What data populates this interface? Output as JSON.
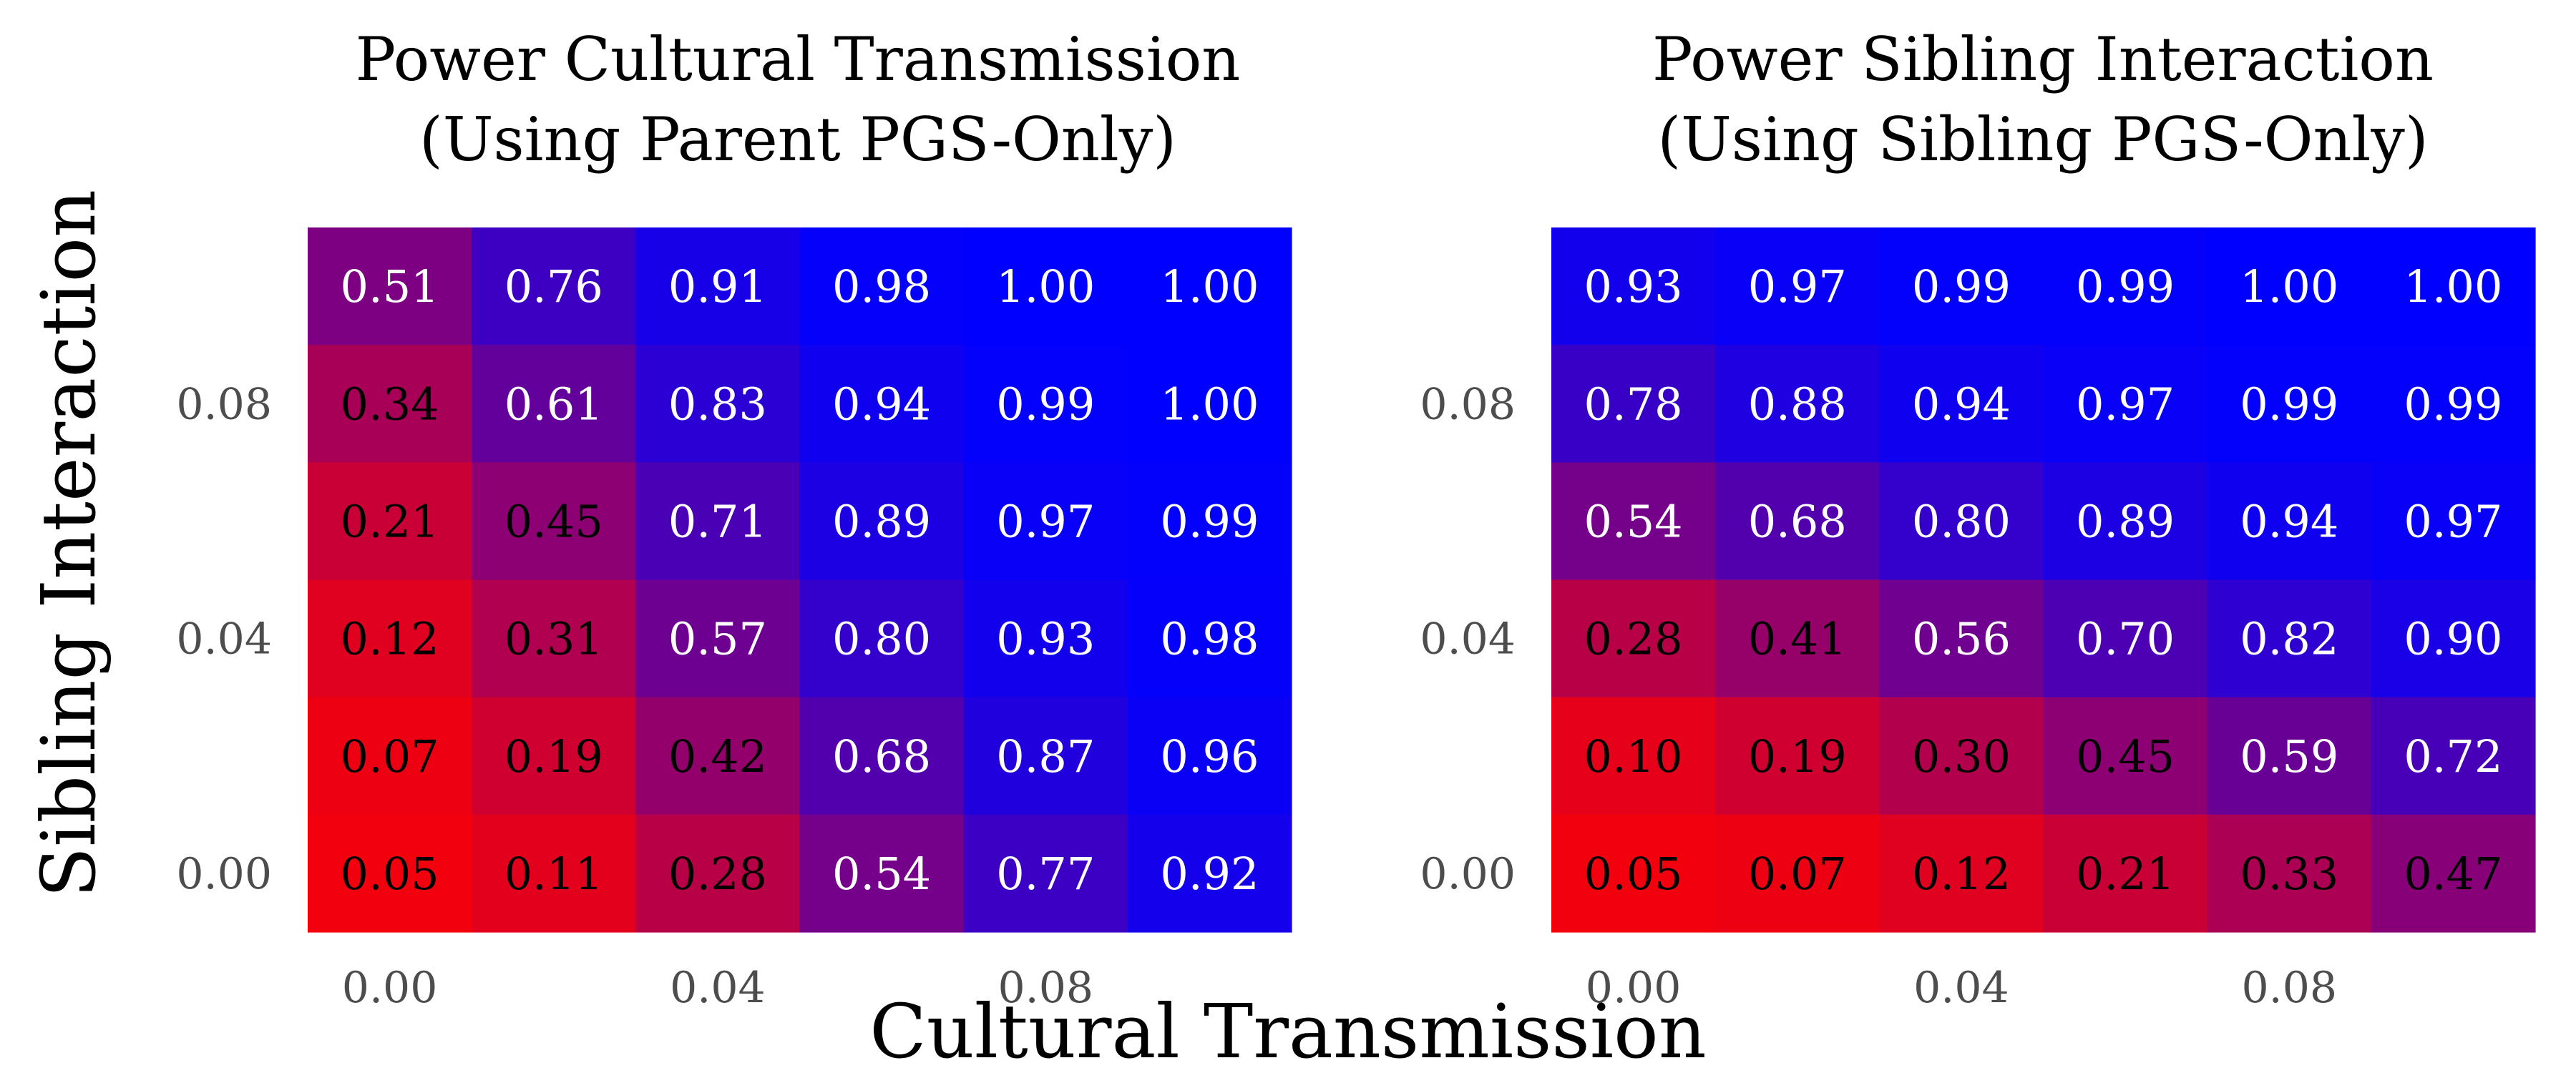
{
  "chart_data": [
    {
      "type": "heatmap",
      "title_lines": [
        "Power Cultural Transmission",
        "(Using Parent PGS-Only)"
      ],
      "x_values": [
        0.0,
        0.02,
        0.04,
        0.06,
        0.08,
        0.1
      ],
      "y_values": [
        0.1,
        0.08,
        0.06,
        0.04,
        0.02,
        0.0
      ],
      "x_tick_labels": [
        {
          "value": 0.0,
          "label": "0.00"
        },
        {
          "value": 0.04,
          "label": "0.04"
        },
        {
          "value": 0.08,
          "label": "0.08"
        }
      ],
      "y_tick_labels": [
        {
          "value": 0.08,
          "label": "0.08"
        },
        {
          "value": 0.04,
          "label": "0.04"
        },
        {
          "value": 0.0,
          "label": "0.00"
        }
      ],
      "values": [
        [
          0.51,
          0.76,
          0.91,
          0.98,
          1.0,
          1.0
        ],
        [
          0.34,
          0.61,
          0.83,
          0.94,
          0.99,
          1.0
        ],
        [
          0.21,
          0.45,
          0.71,
          0.89,
          0.97,
          0.99
        ],
        [
          0.12,
          0.31,
          0.57,
          0.8,
          0.93,
          0.98
        ],
        [
          0.07,
          0.19,
          0.42,
          0.68,
          0.87,
          0.96
        ],
        [
          0.05,
          0.11,
          0.28,
          0.54,
          0.77,
          0.92
        ]
      ],
      "color_low": "#ff0000",
      "color_high": "#0000ff",
      "value_range": [
        0,
        1
      ]
    },
    {
      "type": "heatmap",
      "title_lines": [
        "Power Sibling Interaction",
        "(Using Sibling PGS-Only)"
      ],
      "x_values": [
        0.0,
        0.02,
        0.04,
        0.06,
        0.08,
        0.1
      ],
      "y_values": [
        0.1,
        0.08,
        0.06,
        0.04,
        0.02,
        0.0
      ],
      "x_tick_labels": [
        {
          "value": 0.0,
          "label": "0.00"
        },
        {
          "value": 0.04,
          "label": "0.04"
        },
        {
          "value": 0.08,
          "label": "0.08"
        }
      ],
      "y_tick_labels": [
        {
          "value": 0.08,
          "label": "0.08"
        },
        {
          "value": 0.04,
          "label": "0.04"
        },
        {
          "value": 0.0,
          "label": "0.00"
        }
      ],
      "values": [
        [
          0.93,
          0.97,
          0.99,
          0.99,
          1.0,
          1.0
        ],
        [
          0.78,
          0.88,
          0.94,
          0.97,
          0.99,
          0.99
        ],
        [
          0.54,
          0.68,
          0.8,
          0.89,
          0.94,
          0.97
        ],
        [
          0.28,
          0.41,
          0.56,
          0.7,
          0.82,
          0.9
        ],
        [
          0.1,
          0.19,
          0.3,
          0.45,
          0.59,
          0.72
        ],
        [
          0.05,
          0.07,
          0.12,
          0.21,
          0.33,
          0.47
        ]
      ],
      "color_low": "#ff0000",
      "color_high": "#0000ff",
      "value_range": [
        0,
        1
      ]
    }
  ],
  "xlabel": "Cultural Transmission",
  "ylabel": "Sibling Interaction",
  "text_dark": "#000000",
  "text_light": "#ffffff"
}
